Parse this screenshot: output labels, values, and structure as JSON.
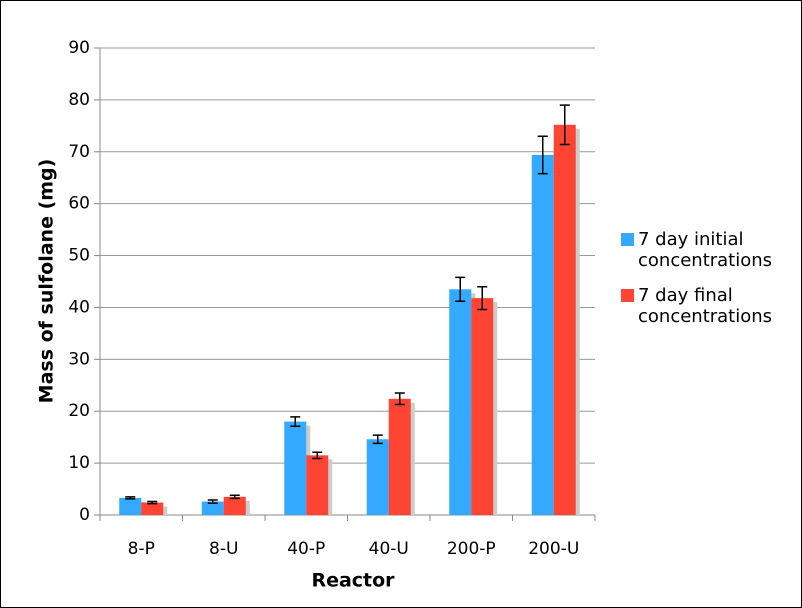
{
  "chart_data": {
    "type": "bar",
    "y_label": "Mass of sulfolane (mg)",
    "x_label": "Reactor",
    "categories": [
      "8-P",
      "8-U",
      "40-P",
      "40-U",
      "200-P",
      "200-U"
    ],
    "series": [
      {
        "name": "7 day initial concentrations",
        "color": "#33aaff",
        "values": [
          3.3,
          2.6,
          18.0,
          14.6,
          43.5,
          69.4
        ],
        "errors": [
          0.2,
          0.3,
          0.9,
          0.8,
          2.3,
          3.6
        ]
      },
      {
        "name": "7 day final concentrations",
        "color": "#ff4433",
        "values": [
          2.4,
          3.5,
          11.5,
          22.4,
          41.8,
          75.2
        ],
        "errors": [
          0.2,
          0.3,
          0.6,
          1.1,
          2.2,
          3.8
        ]
      }
    ],
    "ylim": [
      0,
      90
    ],
    "yticks": [
      0,
      10,
      20,
      30,
      40,
      50,
      60,
      70,
      80,
      90
    ],
    "grid": true,
    "legend": "right"
  }
}
